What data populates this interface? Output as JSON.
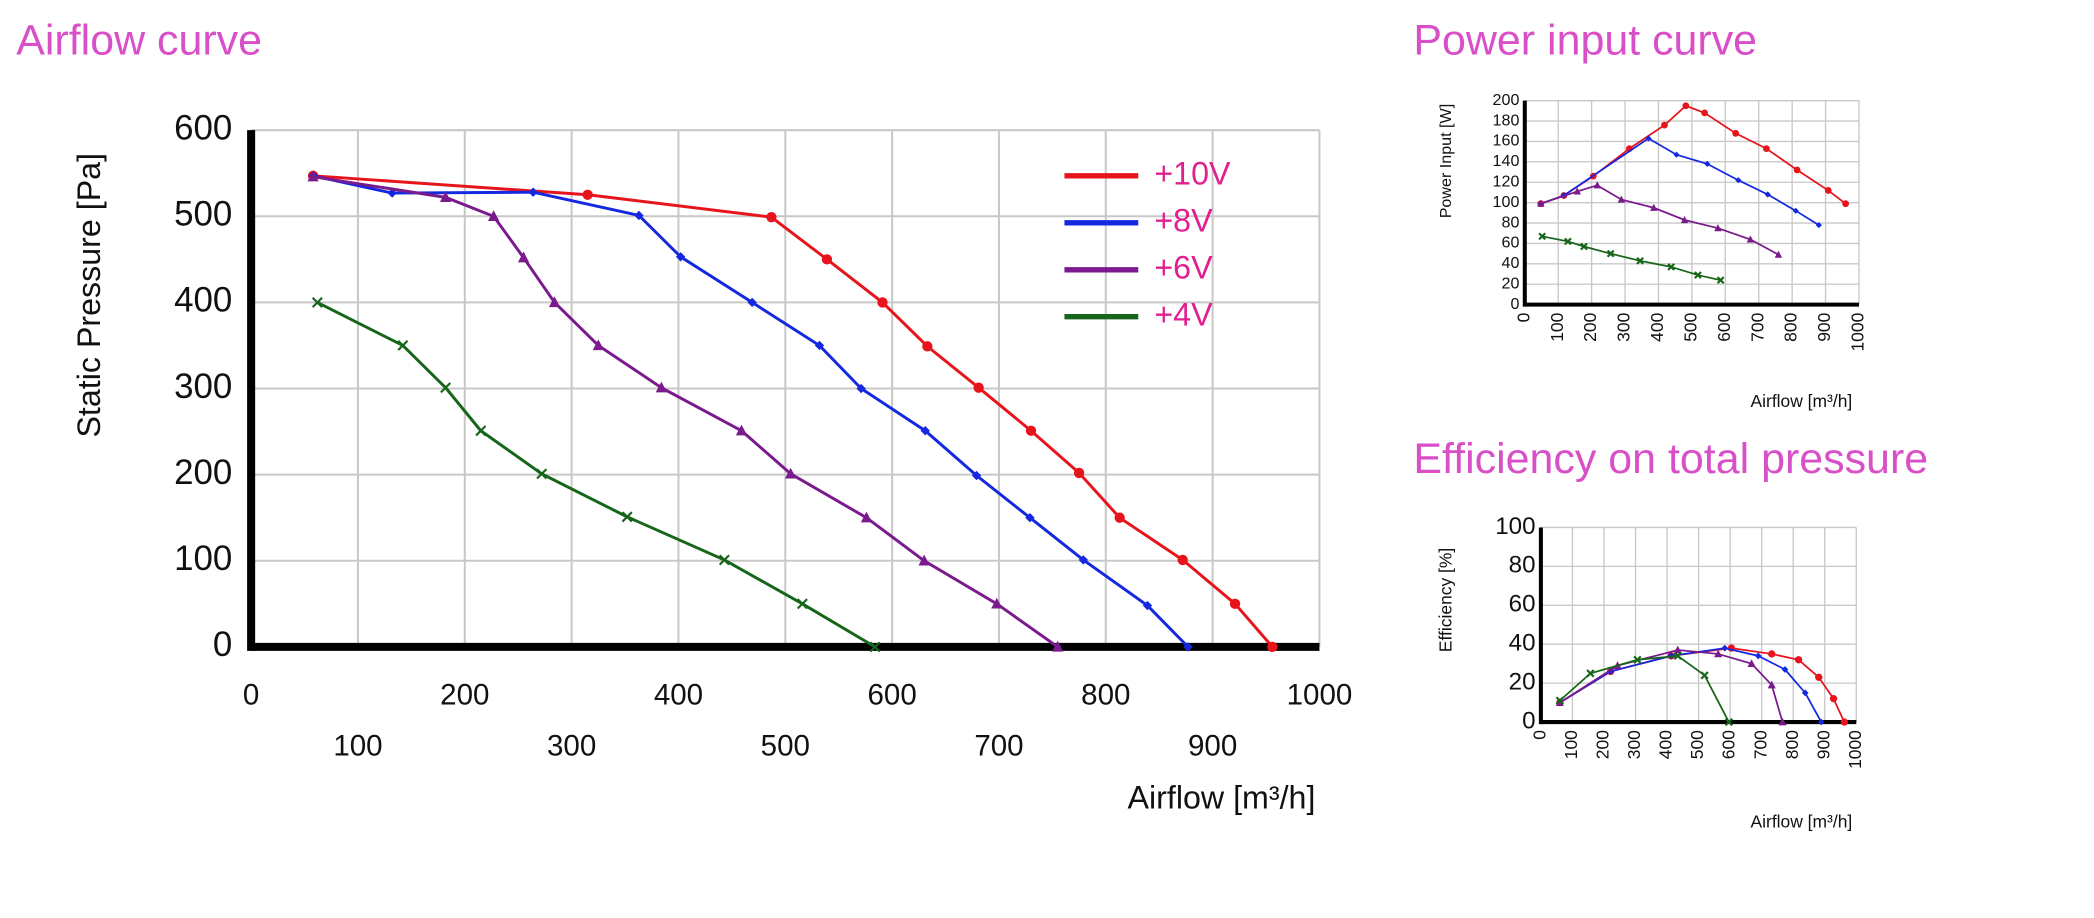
{
  "chart_data": [
    {
      "type": "line",
      "title": "Airflow curve",
      "xlabel": "Airflow [m³/h]",
      "ylabel": "Static Pressure [Pa]",
      "xlim": [
        0,
        1000
      ],
      "ylim": [
        0,
        600
      ],
      "xticks": [
        0,
        100,
        200,
        300,
        400,
        500,
        600,
        700,
        800,
        900,
        1000
      ],
      "yticks": [
        0,
        100,
        200,
        300,
        400,
        500,
        600
      ],
      "grid": true,
      "series": [
        {
          "name": "+10V",
          "color": "#e8141c",
          "marker": "o",
          "x": [
            58,
            315,
            487,
            539,
            591,
            633,
            681,
            730,
            775,
            813,
            872,
            921,
            956
          ],
          "values": [
            547,
            525,
            499,
            450,
            400,
            349,
            301,
            251,
            202,
            150,
            101,
            50,
            0
          ]
        },
        {
          "name": "+8V",
          "color": "#1428e0",
          "marker": "D",
          "x": [
            58,
            132,
            264,
            363,
            402,
            469,
            532,
            571,
            631,
            679,
            729,
            779,
            839,
            877
          ],
          "values": [
            547,
            527,
            528,
            501,
            453,
            400,
            350,
            300,
            251,
            199,
            150,
            101,
            48,
            0
          ]
        },
        {
          "name": "+6V",
          "color": "#7a1a8c",
          "marker": "^",
          "x": [
            58,
            182,
            227,
            255,
            284,
            325,
            384,
            459,
            505,
            576,
            630,
            698,
            755
          ],
          "values": [
            546,
            522,
            500,
            452,
            400,
            350,
            301,
            251,
            201,
            150,
            100,
            50,
            0
          ]
        },
        {
          "name": "+4V",
          "color": "#16661a",
          "marker": "x",
          "x": [
            62,
            142,
            182,
            215,
            272,
            352,
            443,
            516,
            584
          ],
          "values": [
            400,
            350,
            301,
            251,
            201,
            151,
            101,
            50,
            0
          ]
        }
      ]
    },
    {
      "type": "line",
      "title": "Power input curve",
      "xlabel": "Airflow  [m³/h]",
      "ylabel": "Power Input [W]",
      "xlim": [
        0,
        1000
      ],
      "ylim": [
        0,
        200
      ],
      "xticks": [
        0,
        100,
        200,
        300,
        400,
        500,
        600,
        700,
        800,
        900,
        1000
      ],
      "yticks": [
        0,
        20,
        40,
        60,
        80,
        100,
        120,
        140,
        160,
        180,
        200
      ],
      "grid": true,
      "series": [
        {
          "color": "#e8141c",
          "marker": "o",
          "x": [
            48,
            117,
            205,
            313,
            418,
            482,
            538,
            631,
            723,
            815,
            908,
            960
          ],
          "values": [
            99,
            107,
            126,
            153,
            176,
            195,
            188,
            168,
            153,
            132,
            112,
            99
          ]
        },
        {
          "color": "#1428e0",
          "marker": "D",
          "x": [
            48,
            117,
            370,
            454,
            546,
            639,
            727,
            811,
            880
          ],
          "values": [
            99,
            107,
            163,
            147,
            138,
            122,
            108,
            92,
            78
          ]
        },
        {
          "color": "#7a1a8c",
          "marker": "^",
          "x": [
            48,
            157,
            217,
            289,
            386,
            478,
            578,
            675,
            759
          ],
          "values": [
            99,
            111,
            117,
            103,
            95,
            83,
            75,
            64,
            49
          ]
        },
        {
          "color": "#16661a",
          "marker": "x",
          "x": [
            52,
            129,
            177,
            257,
            345,
            438,
            518,
            586
          ],
          "values": [
            67,
            62,
            57,
            50,
            43,
            37,
            29,
            24
          ]
        }
      ]
    },
    {
      "type": "line",
      "title": "Efficiency on total pressure",
      "xlabel": "Airflow  [m³/h]",
      "ylabel": "Efficiency [%]",
      "xlim": [
        0,
        1000
      ],
      "ylim": [
        0,
        100
      ],
      "xticks": [
        0,
        100,
        200,
        300,
        400,
        500,
        600,
        700,
        800,
        900,
        1000
      ],
      "yticks": [
        0,
        20,
        40,
        60,
        80,
        100
      ],
      "grid": true,
      "series": [
        {
          "color": "#e8141c",
          "marker": "o",
          "x": [
            60,
            221,
            413,
            604,
            732,
            817,
            881,
            928,
            962
          ],
          "values": [
            10,
            26,
            34,
            38,
            35,
            32,
            23,
            12,
            0
          ]
        },
        {
          "color": "#1428e0",
          "marker": "D",
          "x": [
            60,
            221,
            413,
            583,
            689,
            774,
            838,
            889
          ],
          "values": [
            10,
            26,
            34,
            38,
            34,
            27,
            15,
            0
          ]
        },
        {
          "color": "#7a1a8c",
          "marker": "^",
          "x": [
            60,
            243,
            434,
            562,
            668,
            732,
            766
          ],
          "values": [
            10,
            29,
            37,
            35,
            30,
            19,
            0
          ]
        },
        {
          "color": "#16661a",
          "marker": "x",
          "x": [
            60,
            157,
            306,
            434,
            519,
            596
          ],
          "values": [
            11,
            25,
            32,
            34,
            24,
            0
          ]
        }
      ]
    }
  ]
}
